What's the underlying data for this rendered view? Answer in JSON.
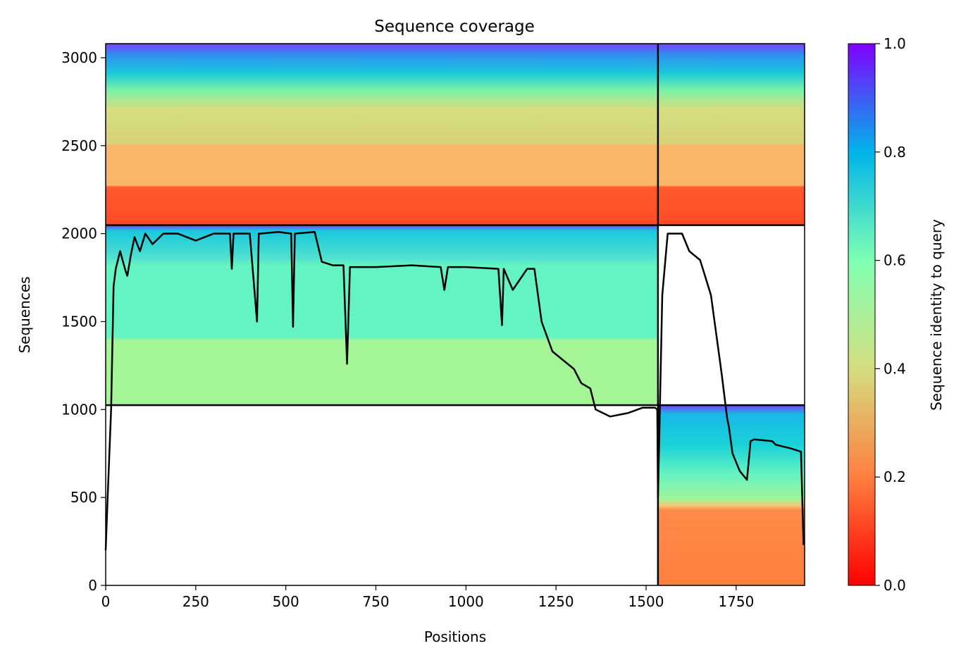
{
  "chart_data": {
    "type": "heatmap",
    "title": "Sequence coverage",
    "xlabel": "Positions",
    "ylabel": "Sequences",
    "xlim": [
      0,
      1940
    ],
    "ylim": [
      0,
      3080
    ],
    "x_ticks": [
      0,
      250,
      500,
      750,
      1000,
      1250,
      1500,
      1750
    ],
    "y_ticks": [
      0,
      500,
      1000,
      1500,
      2000,
      2500,
      3000
    ],
    "colorbar": {
      "label": "Sequence identity to query",
      "range": [
        0.0,
        1.0
      ],
      "ticks": [
        "0.0",
        "0.2",
        "0.4",
        "0.6",
        "0.8",
        "1.0"
      ],
      "colormap": [
        "#ff0000",
        "#ff7f3f",
        "#d4dd7f",
        "#7fffb3",
        "#00b4e9",
        "#8000ff"
      ]
    },
    "chain_boundary_x": 1533,
    "block_boundaries_y": [
      1025,
      2048
    ],
    "blocks": [
      {
        "x_range": [
          0,
          1533
        ],
        "y_range": [
          2048,
          3080
        ]
      },
      {
        "x_range": [
          1533,
          1940
        ],
        "y_range": [
          2048,
          3080
        ]
      },
      {
        "x_range": [
          0,
          1533
        ],
        "y_range": [
          1025,
          2048
        ]
      },
      {
        "x_range": [
          1533,
          1940
        ],
        "y_range": [
          0,
          1025
        ]
      }
    ],
    "coverage_line": {
      "color": "#000000",
      "x": [
        0,
        5,
        15,
        22,
        28,
        40,
        55,
        60,
        70,
        80,
        95,
        110,
        130,
        160,
        200,
        250,
        300,
        345,
        350,
        355,
        400,
        420,
        425,
        430,
        480,
        515,
        520,
        525,
        580,
        600,
        630,
        660,
        670,
        678,
        690,
        750,
        850,
        930,
        940,
        950,
        1000,
        1090,
        1100,
        1105,
        1130,
        1170,
        1190,
        1210,
        1240,
        1270,
        1300,
        1320,
        1345,
        1360,
        1400,
        1450,
        1490,
        1525,
        1531,
        1533,
        1545,
        1560,
        1600,
        1620,
        1650,
        1680,
        1690,
        1700,
        1710,
        1725,
        1730,
        1740,
        1760,
        1780,
        1790,
        1800,
        1850,
        1860,
        1900,
        1930,
        1937
      ],
      "y": [
        200,
        480,
        1000,
        1700,
        1800,
        1900,
        1790,
        1760,
        1880,
        1980,
        1900,
        2000,
        1940,
        2000,
        2000,
        1960,
        2000,
        2000,
        1800,
        2000,
        2000,
        1500,
        2000,
        2000,
        2010,
        2000,
        1470,
        2000,
        2010,
        1840,
        1820,
        1820,
        1260,
        1810,
        1810,
        1810,
        1820,
        1810,
        1680,
        1810,
        1810,
        1800,
        1480,
        1800,
        1680,
        1800,
        1800,
        1500,
        1330,
        1280,
        1230,
        1150,
        1120,
        1000,
        960,
        980,
        1010,
        1010,
        1000,
        500,
        1650,
        2000,
        2000,
        1900,
        1850,
        1650,
        1500,
        1350,
        1200,
        950,
        900,
        750,
        650,
        600,
        820,
        830,
        820,
        800,
        780,
        760,
        230
      ]
    }
  }
}
